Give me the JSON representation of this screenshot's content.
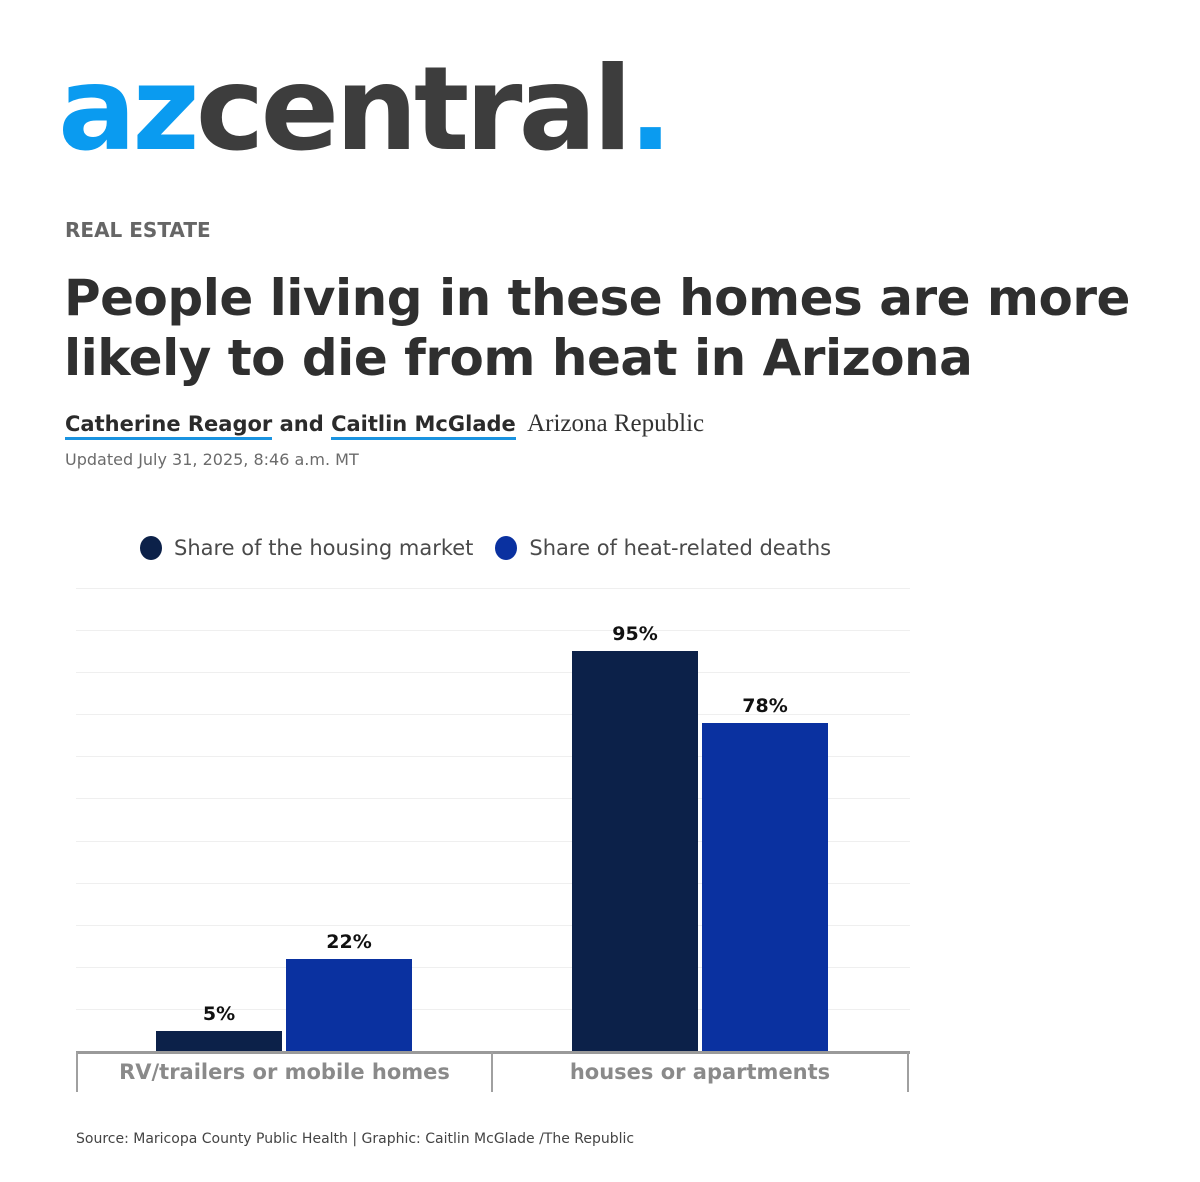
{
  "brand": {
    "logo_part1": "az",
    "logo_part2": "central",
    "logo_dot": ".",
    "primary_color": "#0a9bf0",
    "secondary_color": "#3d3d3d"
  },
  "article": {
    "section": "REAL ESTATE",
    "headline": "People living in these homes are more likely to die from heat in Arizona",
    "authors": [
      "Catherine Reagor",
      "Caitlin McGlade"
    ],
    "author_joiner": "and",
    "publication": "Arizona Republic",
    "updated": "Updated July 31, 2025, 8:46 a.m. MT"
  },
  "chart_data": {
    "type": "bar",
    "title": "",
    "categories": [
      "RV/trailers or mobile homes",
      "houses or apartments"
    ],
    "series": [
      {
        "name": "Share of the housing market",
        "color": "#0c2149",
        "values": [
          5,
          95
        ],
        "labels": [
          "5%",
          "95%"
        ]
      },
      {
        "name": "Share of heat-related deaths",
        "color": "#0a31a0",
        "values": [
          22,
          78
        ],
        "labels": [
          "22%",
          "78%"
        ]
      }
    ],
    "xlabel": "",
    "ylabel": "",
    "ylim": [
      0,
      110
    ],
    "grid": true,
    "legend_position": "top",
    "y_unit": "%"
  },
  "footer": {
    "source": "Source: Maricopa County Public Health | Graphic: Caitlin McGlade /The Republic"
  }
}
